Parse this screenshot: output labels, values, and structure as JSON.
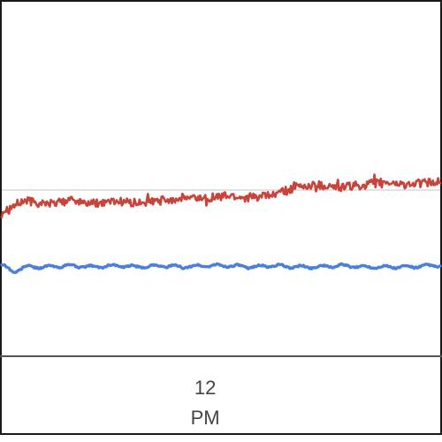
{
  "chart_data": {
    "type": "line",
    "title": "",
    "xlabel": "",
    "ylabel": "",
    "grid": true,
    "legend": "none",
    "x_tick_labels": [
      {
        "x": 12,
        "line1": "12",
        "line2": "PM"
      }
    ],
    "xlim": [
      7.5,
      17.2
    ],
    "ylim": [
      0,
      100
    ],
    "gridlines_y": [
      50
    ],
    "series": [
      {
        "color": "#c8443a",
        "x": [
          7.5,
          8.0,
          8.5,
          9.0,
          9.5,
          10.0,
          10.5,
          11.0,
          11.5,
          12.0,
          12.5,
          13.0,
          13.5,
          14.0,
          14.5,
          15.0,
          15.5,
          16.0,
          16.5,
          17.0,
          17.2
        ],
        "y": [
          42,
          46,
          45,
          46,
          45,
          46,
          45,
          46,
          47,
          47,
          48,
          47,
          48,
          51,
          52,
          51,
          52,
          53,
          52,
          53,
          53
        ]
      },
      {
        "color": "#4a7fdc",
        "x": [
          7.5,
          7.75,
          8.0,
          8.5,
          9.0,
          9.5,
          10.0,
          10.5,
          11.0,
          11.5,
          12.0,
          12.5,
          13.0,
          13.5,
          14.0,
          14.5,
          15.0,
          15.5,
          16.0,
          16.5,
          17.0,
          17.2
        ],
        "y": [
          22,
          19,
          21,
          21,
          21.5,
          21,
          21.5,
          21,
          21.5,
          21,
          21.5,
          21.5,
          21,
          21.5,
          21,
          21,
          21.5,
          21,
          21,
          21,
          21.5,
          21.5
        ]
      }
    ]
  }
}
